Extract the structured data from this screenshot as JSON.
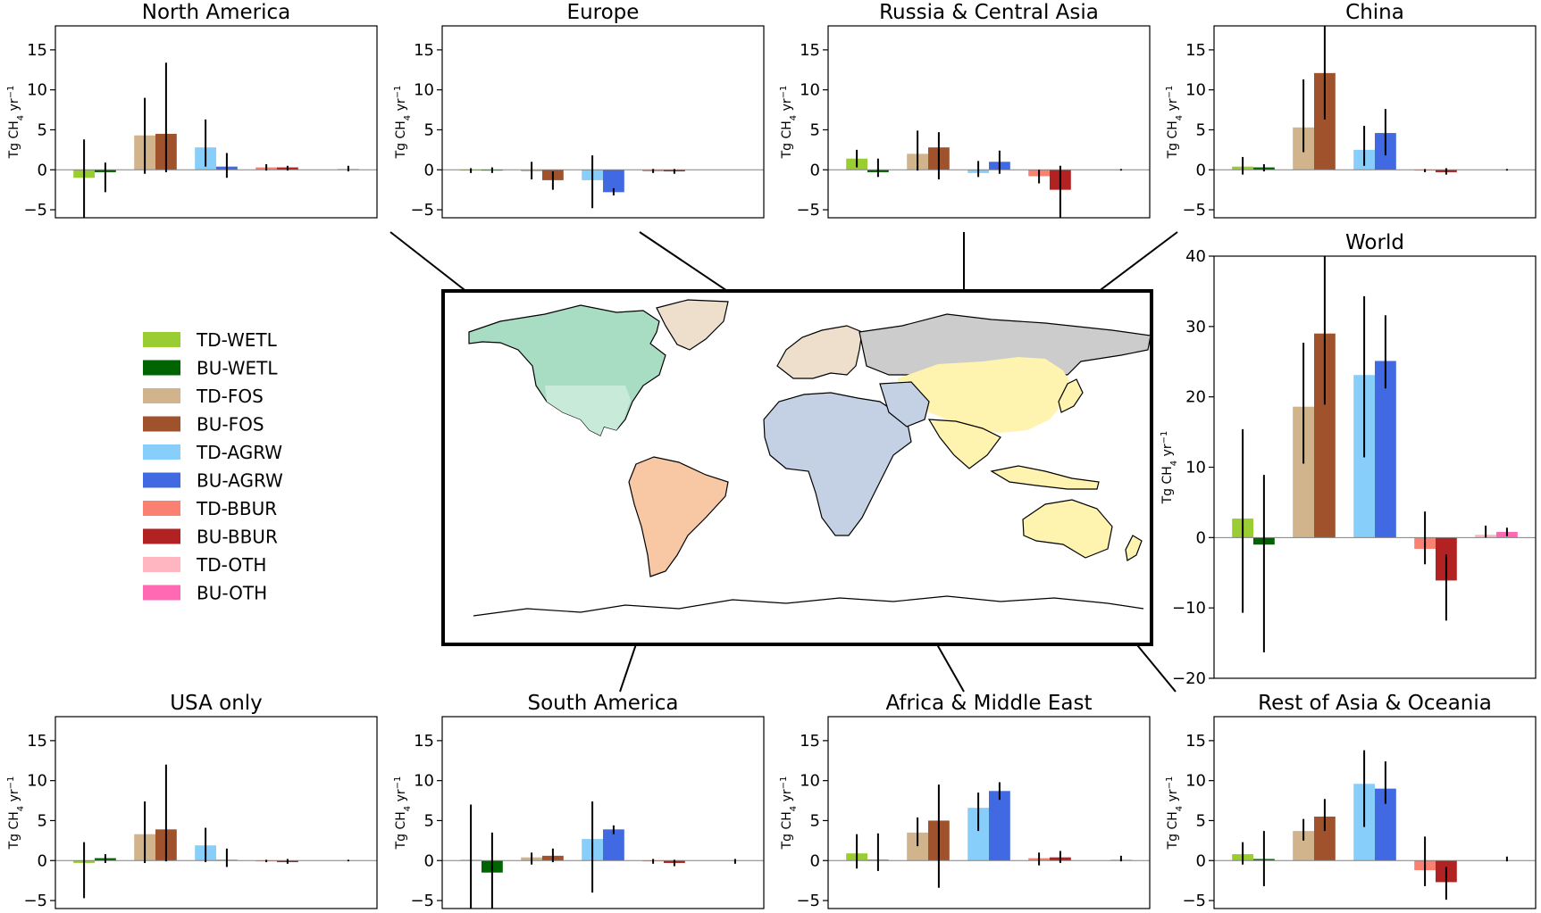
{
  "categories": [
    "TD-WETL",
    "BU-WETL",
    "TD-FOS",
    "BU-FOS",
    "TD-AGRW",
    "BU-AGRW",
    "TD-BBUR",
    "BU-BBUR",
    "TD-OTH",
    "BU-OTH"
  ],
  "colors": [
    "#9acd32",
    "#006400",
    "#d2b48c",
    "#a0522d",
    "#87cefa",
    "#4169e1",
    "#fa8072",
    "#b22222",
    "#ffb6c1",
    "#ff69b4"
  ],
  "map_colors": {
    "north_america": "#a8dcc3",
    "south_america": "#f8c8a4",
    "europe": "#eedfcc",
    "russia_central_asia": "#cccccc",
    "china": "#fff3b0",
    "africa_middle_east": "#c4d0e3",
    "rest_of_asia_oceania": "#fff3b0",
    "usa_only": "#c8ead9"
  },
  "chart_data": [
    {
      "id": "north_america",
      "type": "bar",
      "title": "North America",
      "ylabel_main": "Tg CH",
      "ylabel_sub": "4",
      "ylabel_unit": " yr",
      "ylabel_sup": "−1",
      "ylim": [
        -6,
        18
      ],
      "yticks": [
        -5,
        0,
        5,
        10,
        15
      ],
      "ytick_labels": [
        "−5",
        "0",
        "5",
        "10",
        "15"
      ],
      "values": [
        -1.0,
        -0.3,
        4.3,
        4.5,
        2.8,
        0.4,
        0.3,
        0.3,
        0.0,
        0.1
      ],
      "errors": [
        [
          -6.5,
          3.8
        ],
        [
          -2.8,
          0.9
        ],
        [
          -0.5,
          9.0
        ],
        [
          -0.3,
          13.4
        ],
        [
          0.4,
          6.3
        ],
        [
          -1.0,
          2.1
        ],
        [
          -0.1,
          0.7
        ],
        [
          -0.1,
          0.5
        ],
        [
          0.0,
          0.0
        ],
        [
          -0.2,
          0.5
        ]
      ]
    },
    {
      "id": "europe",
      "type": "bar",
      "title": "Europe",
      "ylabel_main": "Tg CH",
      "ylabel_sub": "4",
      "ylabel_unit": " yr",
      "ylabel_sup": "−1",
      "ylim": [
        -6,
        18
      ],
      "yticks": [
        -5,
        0,
        5,
        10,
        15
      ],
      "ytick_labels": [
        "−5",
        "0",
        "5",
        "10",
        "15"
      ],
      "values": [
        -0.1,
        -0.1,
        -0.2,
        -1.3,
        -1.3,
        -2.8,
        -0.2,
        -0.2,
        0.0,
        0.0
      ],
      "errors": [
        [
          -0.4,
          0.2
        ],
        [
          -0.4,
          0.3
        ],
        [
          -1.2,
          1.0
        ],
        [
          -2.5,
          -0.2
        ],
        [
          -4.8,
          1.8
        ],
        [
          -3.2,
          -2.3
        ],
        [
          -0.4,
          0.1
        ],
        [
          -0.5,
          0.1
        ],
        [
          0.0,
          0.0
        ],
        [
          0.0,
          0.0
        ]
      ]
    },
    {
      "id": "russia_central_asia",
      "type": "bar",
      "title": "Russia & Central Asia",
      "ylabel_main": "Tg CH",
      "ylabel_sub": "4",
      "ylabel_unit": " yr",
      "ylabel_sup": "−1",
      "ylim": [
        -6,
        18
      ],
      "yticks": [
        -5,
        0,
        5,
        10,
        15
      ],
      "ytick_labels": [
        "−5",
        "0",
        "5",
        "10",
        "15"
      ],
      "values": [
        1.4,
        -0.3,
        2.0,
        2.8,
        -0.4,
        1.0,
        -0.8,
        -2.5,
        0.0,
        0.0
      ],
      "errors": [
        [
          0.3,
          2.5
        ],
        [
          -0.9,
          1.4
        ],
        [
          -0.1,
          4.9
        ],
        [
          -1.2,
          4.7
        ],
        [
          -0.9,
          1.1
        ],
        [
          -0.5,
          2.4
        ],
        [
          -1.7,
          0.0
        ],
        [
          -6.0,
          0.5
        ],
        [
          0.0,
          0.0
        ],
        [
          -0.1,
          0.1
        ]
      ]
    },
    {
      "id": "china",
      "type": "bar",
      "title": "China",
      "ylabel_main": "Tg CH",
      "ylabel_sub": "4",
      "ylabel_unit": " yr",
      "ylabel_sup": "−1",
      "ylim": [
        -6,
        18
      ],
      "yticks": [
        -5,
        0,
        5,
        10,
        15
      ],
      "ytick_labels": [
        "−5",
        "0",
        "5",
        "10",
        "15"
      ],
      "values": [
        0.4,
        0.3,
        5.3,
        12.1,
        2.5,
        4.6,
        -0.1,
        -0.3,
        0.0,
        0.0
      ],
      "errors": [
        [
          -0.6,
          1.6
        ],
        [
          -0.2,
          0.7
        ],
        [
          2.2,
          11.3
        ],
        [
          6.3,
          18.0
        ],
        [
          0.5,
          5.5
        ],
        [
          1.8,
          7.6
        ],
        [
          -0.3,
          0.1
        ],
        [
          -0.6,
          0.2
        ],
        [
          0.0,
          0.0
        ],
        [
          -0.1,
          0.1
        ]
      ]
    },
    {
      "id": "world",
      "type": "bar",
      "title": "World",
      "ylabel_main": "Tg CH",
      "ylabel_sub": "4",
      "ylabel_unit": " yr",
      "ylabel_sup": "−1",
      "ylim": [
        -20,
        40
      ],
      "yticks": [
        -20,
        -10,
        0,
        10,
        20,
        30,
        40
      ],
      "ytick_labels": [
        "−20",
        "−10",
        "0",
        "10",
        "20",
        "30",
        "40"
      ],
      "values": [
        2.7,
        -1.0,
        18.6,
        29.0,
        23.1,
        25.1,
        -1.6,
        -6.1,
        0.4,
        0.8
      ],
      "errors": [
        [
          -10.7,
          15.4
        ],
        [
          -16.3,
          8.9
        ],
        [
          10.5,
          27.7
        ],
        [
          18.9,
          40.0
        ],
        [
          11.4,
          34.3
        ],
        [
          21.2,
          31.6
        ],
        [
          -3.8,
          3.7
        ],
        [
          -11.8,
          -2.4
        ],
        [
          0.0,
          1.7
        ],
        [
          0.2,
          1.4
        ]
      ]
    },
    {
      "id": "usa_only",
      "type": "bar",
      "title": "USA only",
      "ylabel_main": "Tg CH",
      "ylabel_sub": "4",
      "ylabel_unit": " yr",
      "ylabel_sup": "−1",
      "ylim": [
        -6,
        18
      ],
      "yticks": [
        -5,
        0,
        5,
        10,
        15
      ],
      "ytick_labels": [
        "−5",
        "0",
        "5",
        "10",
        "15"
      ],
      "values": [
        -0.3,
        0.3,
        3.3,
        3.9,
        1.9,
        0.1,
        -0.1,
        -0.2,
        0.0,
        0.0
      ],
      "errors": [
        [
          -4.7,
          2.3
        ],
        [
          -0.3,
          0.8
        ],
        [
          -0.3,
          7.4
        ],
        [
          -0.1,
          12.0
        ],
        [
          -0.2,
          4.1
        ],
        [
          -0.8,
          1.5
        ],
        [
          -0.2,
          0.1
        ],
        [
          -0.4,
          0.2
        ],
        [
          0.0,
          0.0
        ],
        [
          -0.1,
          0.1
        ]
      ]
    },
    {
      "id": "south_america",
      "type": "bar",
      "title": "South America",
      "ylabel_main": "Tg CH",
      "ylabel_sub": "4",
      "ylabel_unit": " yr",
      "ylabel_sup": "−1",
      "ylim": [
        -6,
        18
      ],
      "yticks": [
        -5,
        0,
        5,
        10,
        15
      ],
      "ytick_labels": [
        "−5",
        "0",
        "5",
        "10",
        "15"
      ],
      "values": [
        0.1,
        -1.5,
        0.4,
        0.6,
        2.7,
        3.9,
        -0.1,
        -0.3,
        0.0,
        0.0
      ],
      "errors": [
        [
          -6.0,
          7.0
        ],
        [
          -6.0,
          3.5
        ],
        [
          -0.5,
          1.0
        ],
        [
          -0.2,
          1.5
        ],
        [
          -4.0,
          7.4
        ],
        [
          3.3,
          4.4
        ],
        [
          -0.4,
          0.2
        ],
        [
          -0.7,
          0.1
        ],
        [
          0.0,
          0.0
        ],
        [
          -0.4,
          0.2
        ]
      ]
    },
    {
      "id": "africa_middle_east",
      "type": "bar",
      "title": "Africa & Middle East",
      "ylabel_main": "Tg CH",
      "ylabel_sub": "4",
      "ylabel_unit": " yr",
      "ylabel_sup": "−1",
      "ylim": [
        -6,
        18
      ],
      "yticks": [
        -5,
        0,
        5,
        10,
        15
      ],
      "ytick_labels": [
        "−5",
        "0",
        "5",
        "10",
        "15"
      ],
      "values": [
        0.9,
        0.1,
        3.5,
        5.0,
        6.6,
        8.7,
        0.3,
        0.4,
        0.0,
        0.1
      ],
      "errors": [
        [
          -1.0,
          3.3
        ],
        [
          -1.3,
          3.4
        ],
        [
          1.8,
          5.4
        ],
        [
          -3.4,
          9.5
        ],
        [
          3.7,
          8.5
        ],
        [
          7.6,
          9.8
        ],
        [
          -0.6,
          1.0
        ],
        [
          -0.3,
          1.2
        ],
        [
          0.0,
          0.0
        ],
        [
          -0.1,
          0.6
        ]
      ]
    },
    {
      "id": "rest_of_asia_oceania",
      "type": "bar",
      "title": "Rest of Asia & Oceania",
      "ylabel_main": "Tg CH",
      "ylabel_sub": "4",
      "ylabel_unit": " yr",
      "ylabel_sup": "−1",
      "ylim": [
        -6,
        18
      ],
      "yticks": [
        -5,
        0,
        5,
        10,
        15
      ],
      "ytick_labels": [
        "−5",
        "0",
        "5",
        "10",
        "15"
      ],
      "values": [
        0.8,
        0.2,
        3.7,
        5.5,
        9.6,
        9.0,
        -1.2,
        -2.7,
        0.0,
        0.0
      ],
      "errors": [
        [
          -0.5,
          2.3
        ],
        [
          -3.2,
          3.7
        ],
        [
          2.5,
          5.2
        ],
        [
          3.7,
          7.7
        ],
        [
          4.2,
          13.8
        ],
        [
          7.1,
          12.4
        ],
        [
          -3.2,
          3.0
        ],
        [
          -4.9,
          -0.8
        ],
        [
          0.0,
          0.0
        ],
        [
          -0.1,
          0.5
        ]
      ]
    }
  ]
}
